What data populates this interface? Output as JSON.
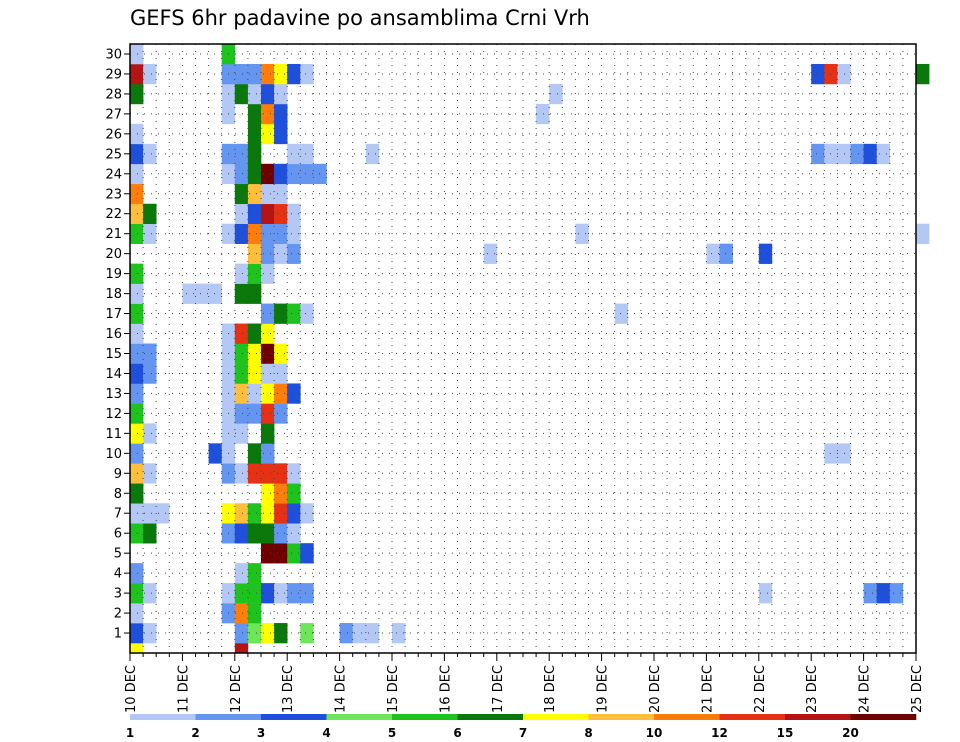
{
  "chart_data": {
    "type": "heatmap",
    "title": "GEFS 6hr padavine po ansamblima Crni Vrh",
    "xlabel": "",
    "ylabel": "",
    "x_tick_labels": [
      "10 DEC",
      "11 DEC",
      "12 DEC",
      "13 DEC",
      "14 DEC",
      "15 DEC",
      "16 DEC",
      "17 DEC",
      "18 DEC",
      "19 DEC",
      "20 DEC",
      "21 DEC",
      "22 DEC",
      "23 DEC",
      "24 DEC",
      "25 DEC"
    ],
    "x_range": [
      "10 DEC 00",
      "25 DEC 00"
    ],
    "y_tick_labels": [
      "1",
      "2",
      "3",
      "4",
      "5",
      "6",
      "7",
      "8",
      "9",
      "10",
      "11",
      "12",
      "13",
      "14",
      "15",
      "16",
      "17",
      "18",
      "19",
      "20",
      "21",
      "22",
      "23",
      "24",
      "25",
      "26",
      "27",
      "28",
      "29",
      "30"
    ],
    "y_range": [
      0,
      30
    ],
    "grid": true,
    "legend_labels": [
      "1",
      "2",
      "3",
      "4",
      "5",
      "6",
      "7",
      "8",
      "10",
      "12",
      "15",
      "20"
    ],
    "legend_colors": [
      "#b4c8f5",
      "#6495f0",
      "#1e50dc",
      "#6ee65a",
      "#1ec31e",
      "#0a780a",
      "#ffff00",
      "#ffbe3c",
      "#ff7d0a",
      "#e63214",
      "#b41414",
      "#6e0000"
    ],
    "cell_hours": 6,
    "note_cells": "each cell: [member, day, hour, class] where class indexes legend_colors",
    "cells": [
      [
        0,
        10,
        0,
        6
      ],
      [
        0,
        12,
        0,
        10
      ],
      [
        1,
        10,
        0,
        2
      ],
      [
        1,
        10,
        6,
        0
      ],
      [
        1,
        12,
        0,
        1
      ],
      [
        1,
        12,
        6,
        3
      ],
      [
        1,
        12,
        12,
        6
      ],
      [
        1,
        12,
        18,
        5
      ],
      [
        1,
        13,
        6,
        3
      ],
      [
        1,
        14,
        0,
        1
      ],
      [
        1,
        14,
        6,
        0
      ],
      [
        1,
        14,
        12,
        0
      ],
      [
        1,
        15,
        0,
        0
      ],
      [
        2,
        10,
        0,
        0
      ],
      [
        2,
        11,
        18,
        1
      ],
      [
        2,
        12,
        0,
        8
      ],
      [
        2,
        12,
        6,
        4
      ],
      [
        3,
        10,
        0,
        4
      ],
      [
        3,
        10,
        6,
        0
      ],
      [
        3,
        11,
        18,
        0
      ],
      [
        3,
        12,
        0,
        4
      ],
      [
        3,
        12,
        6,
        4
      ],
      [
        3,
        12,
        12,
        2
      ],
      [
        3,
        12,
        18,
        0
      ],
      [
        3,
        13,
        0,
        1
      ],
      [
        3,
        13,
        6,
        1
      ],
      [
        3,
        22,
        0,
        0
      ],
      [
        3,
        24,
        0,
        1
      ],
      [
        3,
        24,
        6,
        2
      ],
      [
        3,
        24,
        12,
        1
      ],
      [
        4,
        10,
        0,
        1
      ],
      [
        4,
        12,
        0,
        0
      ],
      [
        4,
        12,
        6,
        4
      ],
      [
        5,
        12,
        12,
        11
      ],
      [
        5,
        12,
        18,
        11
      ],
      [
        5,
        13,
        0,
        4
      ],
      [
        5,
        13,
        6,
        2
      ],
      [
        6,
        10,
        0,
        4
      ],
      [
        6,
        10,
        6,
        5
      ],
      [
        6,
        11,
        18,
        1
      ],
      [
        6,
        12,
        0,
        2
      ],
      [
        6,
        12,
        6,
        5
      ],
      [
        6,
        12,
        12,
        5
      ],
      [
        6,
        12,
        18,
        1
      ],
      [
        6,
        13,
        0,
        0
      ],
      [
        7,
        10,
        0,
        0
      ],
      [
        7,
        10,
        6,
        0
      ],
      [
        7,
        10,
        12,
        0
      ],
      [
        7,
        11,
        18,
        6
      ],
      [
        7,
        12,
        0,
        7
      ],
      [
        7,
        12,
        6,
        4
      ],
      [
        7,
        12,
        12,
        6
      ],
      [
        7,
        12,
        18,
        9
      ],
      [
        7,
        13,
        0,
        2
      ],
      [
        7,
        13,
        6,
        0
      ],
      [
        8,
        10,
        0,
        5
      ],
      [
        8,
        12,
        12,
        6
      ],
      [
        8,
        12,
        18,
        8
      ],
      [
        8,
        13,
        0,
        4
      ],
      [
        9,
        10,
        0,
        7
      ],
      [
        9,
        10,
        6,
        0
      ],
      [
        9,
        11,
        18,
        1
      ],
      [
        9,
        12,
        0,
        0
      ],
      [
        9,
        12,
        6,
        9
      ],
      [
        9,
        12,
        12,
        9
      ],
      [
        9,
        12,
        18,
        9
      ],
      [
        9,
        13,
        0,
        0
      ],
      [
        10,
        10,
        0,
        1
      ],
      [
        10,
        11,
        12,
        2
      ],
      [
        10,
        11,
        18,
        0
      ],
      [
        10,
        12,
        6,
        5
      ],
      [
        10,
        12,
        12,
        1
      ],
      [
        10,
        23,
        6,
        0
      ],
      [
        10,
        23,
        12,
        0
      ],
      [
        11,
        10,
        0,
        6
      ],
      [
        11,
        10,
        6,
        0
      ],
      [
        11,
        11,
        18,
        0
      ],
      [
        11,
        12,
        0,
        0
      ],
      [
        11,
        12,
        12,
        5
      ],
      [
        12,
        10,
        0,
        4
      ],
      [
        12,
        11,
        18,
        0
      ],
      [
        12,
        12,
        0,
        1
      ],
      [
        12,
        12,
        6,
        1
      ],
      [
        12,
        12,
        12,
        9
      ],
      [
        12,
        12,
        18,
        1
      ],
      [
        13,
        10,
        0,
        1
      ],
      [
        13,
        11,
        18,
        0
      ],
      [
        13,
        12,
        0,
        7
      ],
      [
        13,
        12,
        6,
        0
      ],
      [
        13,
        12,
        12,
        6
      ],
      [
        13,
        12,
        18,
        8
      ],
      [
        13,
        13,
        0,
        2
      ],
      [
        14,
        10,
        0,
        2
      ],
      [
        14,
        10,
        6,
        1
      ],
      [
        14,
        11,
        18,
        0
      ],
      [
        14,
        12,
        0,
        4
      ],
      [
        14,
        12,
        6,
        6
      ],
      [
        14,
        12,
        12,
        0
      ],
      [
        14,
        12,
        18,
        0
      ],
      [
        15,
        10,
        0,
        1
      ],
      [
        15,
        10,
        6,
        1
      ],
      [
        15,
        11,
        18,
        0
      ],
      [
        15,
        12,
        0,
        4
      ],
      [
        15,
        12,
        6,
        6
      ],
      [
        15,
        12,
        12,
        11
      ],
      [
        15,
        12,
        18,
        6
      ],
      [
        16,
        10,
        0,
        0
      ],
      [
        16,
        11,
        18,
        0
      ],
      [
        16,
        12,
        0,
        9
      ],
      [
        16,
        12,
        6,
        5
      ],
      [
        16,
        12,
        12,
        6
      ],
      [
        17,
        10,
        0,
        4
      ],
      [
        17,
        12,
        12,
        1
      ],
      [
        17,
        12,
        18,
        5
      ],
      [
        17,
        13,
        0,
        4
      ],
      [
        17,
        13,
        6,
        0
      ],
      [
        17,
        19,
        6,
        0
      ],
      [
        18,
        10,
        0,
        0
      ],
      [
        18,
        11,
        0,
        0
      ],
      [
        18,
        11,
        6,
        0
      ],
      [
        18,
        11,
        12,
        0
      ],
      [
        18,
        12,
        0,
        5
      ],
      [
        18,
        12,
        6,
        5
      ],
      [
        19,
        10,
        0,
        4
      ],
      [
        19,
        12,
        0,
        0
      ],
      [
        19,
        12,
        6,
        4
      ],
      [
        19,
        12,
        12,
        0
      ],
      [
        20,
        12,
        6,
        7
      ],
      [
        20,
        12,
        12,
        1
      ],
      [
        20,
        12,
        18,
        0
      ],
      [
        20,
        13,
        0,
        1
      ],
      [
        20,
        16,
        18,
        0
      ],
      [
        20,
        21,
        0,
        0
      ],
      [
        20,
        21,
        6,
        1
      ],
      [
        20,
        22,
        0,
        2
      ],
      [
        21,
        10,
        0,
        4
      ],
      [
        21,
        10,
        6,
        0
      ],
      [
        21,
        11,
        18,
        0
      ],
      [
        21,
        12,
        0,
        2
      ],
      [
        21,
        12,
        6,
        8
      ],
      [
        21,
        12,
        12,
        1
      ],
      [
        21,
        12,
        18,
        1
      ],
      [
        21,
        13,
        0,
        0
      ],
      [
        21,
        18,
        12,
        0
      ],
      [
        21,
        25,
        0,
        0
      ],
      [
        22,
        10,
        0,
        7
      ],
      [
        22,
        10,
        6,
        5
      ],
      [
        22,
        12,
        0,
        0
      ],
      [
        22,
        12,
        6,
        2
      ],
      [
        22,
        12,
        12,
        10
      ],
      [
        22,
        12,
        18,
        9
      ],
      [
        22,
        13,
        0,
        0
      ],
      [
        23,
        10,
        0,
        8
      ],
      [
        23,
        12,
        0,
        5
      ],
      [
        23,
        12,
        6,
        7
      ],
      [
        23,
        12,
        12,
        0
      ],
      [
        23,
        12,
        18,
        0
      ],
      [
        24,
        10,
        0,
        0
      ],
      [
        24,
        11,
        18,
        0
      ],
      [
        24,
        12,
        0,
        1
      ],
      [
        24,
        12,
        6,
        5
      ],
      [
        24,
        12,
        12,
        11
      ],
      [
        24,
        12,
        18,
        2
      ],
      [
        24,
        13,
        0,
        1
      ],
      [
        24,
        13,
        6,
        1
      ],
      [
        24,
        13,
        12,
        1
      ],
      [
        25,
        10,
        0,
        2
      ],
      [
        25,
        10,
        6,
        0
      ],
      [
        25,
        11,
        18,
        1
      ],
      [
        25,
        12,
        0,
        1
      ],
      [
        25,
        12,
        6,
        5
      ],
      [
        25,
        13,
        0,
        0
      ],
      [
        25,
        13,
        6,
        0
      ],
      [
        25,
        14,
        12,
        0
      ],
      [
        25,
        23,
        0,
        1
      ],
      [
        25,
        23,
        6,
        0
      ],
      [
        25,
        23,
        12,
        0
      ],
      [
        25,
        23,
        18,
        1
      ],
      [
        25,
        24,
        0,
        2
      ],
      [
        25,
        24,
        6,
        0
      ],
      [
        26,
        10,
        0,
        0
      ],
      [
        26,
        12,
        6,
        5
      ],
      [
        26,
        12,
        12,
        6
      ],
      [
        26,
        12,
        18,
        2
      ],
      [
        27,
        11,
        18,
        0
      ],
      [
        27,
        12,
        6,
        5
      ],
      [
        27,
        12,
        12,
        8
      ],
      [
        27,
        12,
        18,
        2
      ],
      [
        27,
        17,
        18,
        0
      ],
      [
        28,
        10,
        0,
        5
      ],
      [
        28,
        11,
        18,
        0
      ],
      [
        28,
        12,
        0,
        5
      ],
      [
        28,
        12,
        6,
        0
      ],
      [
        28,
        12,
        12,
        2
      ],
      [
        28,
        12,
        18,
        0
      ],
      [
        28,
        18,
        0,
        0
      ],
      [
        29,
        10,
        0,
        10
      ],
      [
        29,
        10,
        6,
        0
      ],
      [
        29,
        11,
        18,
        1
      ],
      [
        29,
        12,
        0,
        1
      ],
      [
        29,
        12,
        6,
        1
      ],
      [
        29,
        12,
        12,
        8
      ],
      [
        29,
        12,
        18,
        6
      ],
      [
        29,
        13,
        0,
        2
      ],
      [
        29,
        13,
        6,
        0
      ],
      [
        29,
        23,
        0,
        2
      ],
      [
        29,
        23,
        6,
        9
      ],
      [
        29,
        23,
        12,
        0
      ],
      [
        29,
        25,
        0,
        5
      ],
      [
        30,
        10,
        0,
        0
      ],
      [
        30,
        11,
        18,
        4
      ]
    ]
  }
}
